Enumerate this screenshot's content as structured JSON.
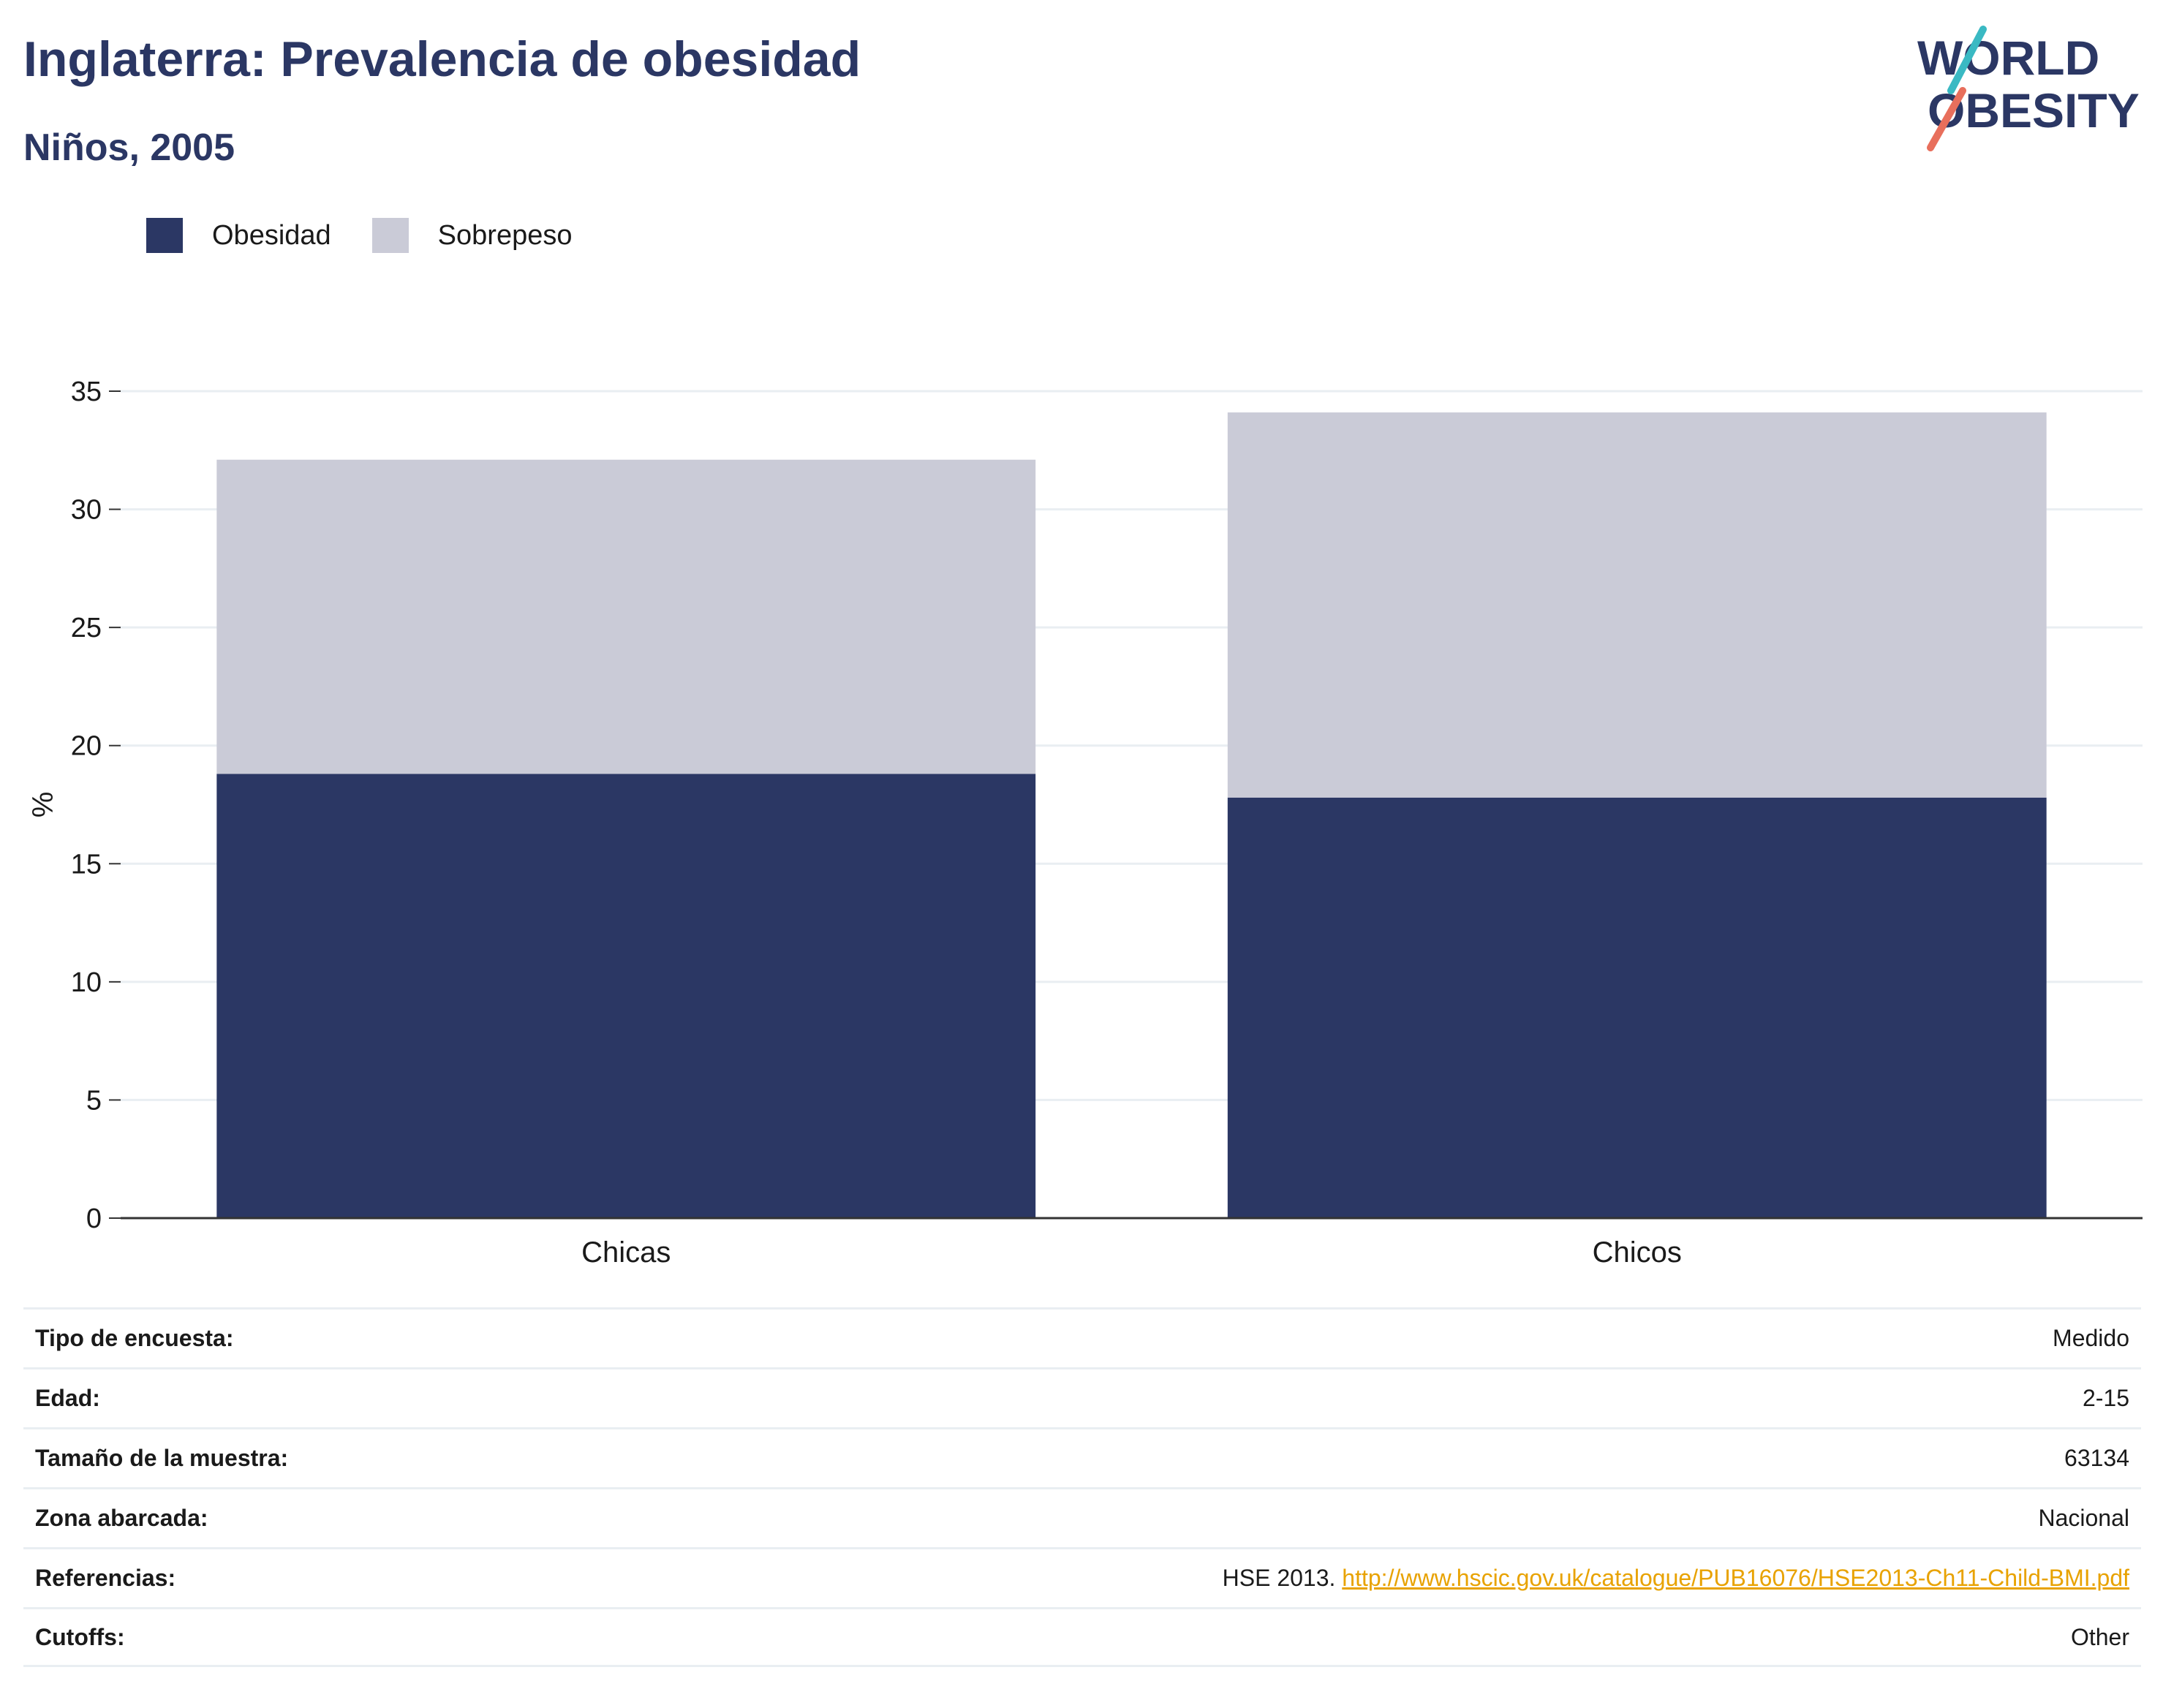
{
  "header": {
    "title": "Inglaterra: Prevalencia de obesidad",
    "subtitle": "Niños, 2005",
    "logo": {
      "line1": "WORLD",
      "line2": "OBESITY"
    }
  },
  "colors": {
    "obesidad": "#2b3764",
    "sobrepeso": "#cacbd7",
    "accent_teal": "#3ab9c3",
    "accent_coral": "#e86f5c",
    "link": "#e8a200"
  },
  "chart_data": {
    "type": "bar",
    "stacked": true,
    "categories": [
      "Chicas",
      "Chicos"
    ],
    "series": [
      {
        "name": "Obesidad",
        "values": [
          18.8,
          17.8
        ]
      },
      {
        "name": "Sobrepeso",
        "values": [
          13.3,
          16.3
        ]
      }
    ],
    "ylabel": "%",
    "ylim": [
      0,
      35
    ],
    "yticks": [
      0,
      5,
      10,
      15,
      20,
      25,
      30,
      35
    ],
    "grid": true,
    "legend_position": "top-left"
  },
  "meta": {
    "rows": [
      {
        "key": "Tipo de encuesta:",
        "value": "Medido"
      },
      {
        "key": "Edad:",
        "value": "2-15"
      },
      {
        "key": "Tamaño de la muestra:",
        "value": "63134"
      },
      {
        "key": "Zona abarcada:",
        "value": "Nacional"
      },
      {
        "key": "Referencias:",
        "value": "HSE 2013.",
        "link": "http://www.hscic.gov.uk/catalogue/PUB16076/HSE2013-Ch11-Child-BMI.pdf"
      },
      {
        "key": "Cutoffs:",
        "value": "Other"
      }
    ]
  }
}
